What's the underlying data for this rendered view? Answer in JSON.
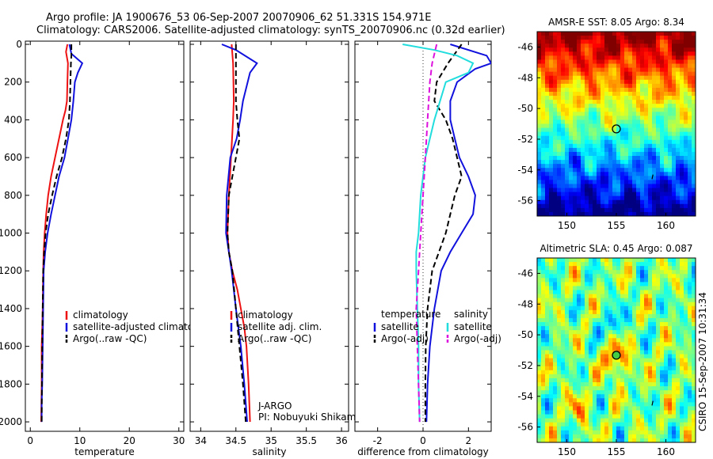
{
  "title_line1": "Argo profile: JA 1900676_53 06-Sep-2007 20070906_62 51.331S 154.971E",
  "title_line2": "Climatology: CARS2006. Satellite-adjusted climatology: synTS_20070906.nc (0.32d earlier)",
  "side_label": "CSIRO 15-Sep-2007 10:31:34",
  "chart_data": [
    {
      "type": "line",
      "xlabel": "temperature",
      "xlim": [
        -1,
        31
      ],
      "ylim": [
        0,
        2050
      ],
      "y_reversed": true,
      "xticks": [
        "0",
        "10",
        "20",
        "30"
      ],
      "yticks": [
        "0",
        "200",
        "400",
        "600",
        "800",
        "1000",
        "1200",
        "1400",
        "1600",
        "1800",
        "2000"
      ],
      "legend": [
        "climatology",
        "satellite-adjusted climatology",
        "Argo(..raw -QC)"
      ],
      "series": [
        {
          "name": "climatology",
          "color": "#ee1111",
          "dash": "",
          "x": [
            7.5,
            7.2,
            7.6,
            7.5,
            7.4,
            7.1,
            6.6,
            5.8,
            5.0,
            4.2,
            3.6,
            3.2,
            2.9,
            2.7,
            2.6,
            2.5,
            2.4,
            2.3,
            2.3,
            2.25,
            2.2
          ],
          "y": [
            0,
            40,
            100,
            200,
            300,
            350,
            400,
            500,
            600,
            700,
            800,
            900,
            1000,
            1100,
            1200,
            1400,
            1500,
            1600,
            1800,
            1900,
            2000
          ]
        },
        {
          "name": "satellite-adjusted climatology",
          "color": "#1111dd",
          "dash": "",
          "x": [
            7.9,
            8.3,
            10.5,
            9.6,
            9.0,
            8.7,
            8.3,
            7.6,
            6.9,
            5.8,
            5.0,
            4.2,
            3.5,
            3.0,
            2.7,
            2.6,
            2.5,
            2.4,
            2.3,
            2.3
          ],
          "y": [
            0,
            50,
            100,
            150,
            200,
            300,
            400,
            500,
            600,
            700,
            800,
            900,
            1000,
            1100,
            1200,
            1400,
            1600,
            1800,
            1900,
            2000
          ]
        },
        {
          "name": "Argo(..raw -QC)",
          "color": "#000000",
          "dash": "7,4",
          "x": [
            8.3,
            8.3,
            8.2,
            8.1,
            8.0,
            7.8,
            7.2,
            6.4,
            5.3,
            4.4,
            3.6,
            3.1,
            2.8,
            2.6,
            2.5,
            2.4,
            2.35,
            2.3
          ],
          "y": [
            0,
            60,
            100,
            200,
            300,
            400,
            500,
            600,
            700,
            800,
            900,
            1000,
            1100,
            1200,
            1400,
            1600,
            1800,
            2000
          ]
        }
      ]
    },
    {
      "type": "line",
      "xlabel": "salinity",
      "xlim": [
        33.85,
        36.1
      ],
      "ylim": [
        0,
        2050
      ],
      "y_reversed": true,
      "xticks": [
        "34",
        "34.5",
        "35",
        "35.5",
        "36"
      ],
      "legend": [
        "climatology",
        "satellite adj. clim.",
        "Argo(..raw -QC)"
      ],
      "annotation": [
        "J-ARGO",
        "PI: Nobuyuki Shikama"
      ],
      "series": [
        {
          "name": "climatology",
          "color": "#ee1111",
          "dash": "",
          "x": [
            34.44,
            34.46,
            34.47,
            34.46,
            34.43,
            34.4,
            34.38,
            34.4,
            34.45,
            34.52,
            34.57,
            34.62,
            34.65,
            34.68,
            34.7
          ],
          "y": [
            0,
            100,
            300,
            400,
            600,
            800,
            1000,
            1100,
            1200,
            1300,
            1400,
            1500,
            1600,
            1800,
            2000
          ]
        },
        {
          "name": "satellite adj. clim.",
          "color": "#1111dd",
          "dash": "",
          "x": [
            34.3,
            34.5,
            34.8,
            34.7,
            34.6,
            34.56,
            34.51,
            34.42,
            34.37,
            34.36,
            34.4,
            34.44,
            34.5,
            34.57,
            34.62,
            34.66
          ],
          "y": [
            0,
            30,
            100,
            150,
            300,
            400,
            500,
            600,
            800,
            1000,
            1100,
            1200,
            1400,
            1600,
            1800,
            2000
          ]
        },
        {
          "name": "Argo(..raw -QC)",
          "color": "#000000",
          "dash": "7,4",
          "x": [
            34.5,
            34.5,
            34.5,
            34.52,
            34.55,
            34.5,
            34.45,
            34.4,
            34.38,
            34.4,
            34.45,
            34.5,
            34.55,
            34.6,
            34.64
          ],
          "y": [
            0,
            100,
            300,
            400,
            500,
            600,
            700,
            800,
            1000,
            1100,
            1200,
            1400,
            1600,
            1800,
            2000
          ]
        }
      ]
    },
    {
      "type": "line",
      "xlabel": "difference from climatology",
      "xlim": [
        -3,
        3
      ],
      "ylim": [
        0,
        2050
      ],
      "y_reversed": true,
      "xticks": [
        "-2",
        "0",
        "2"
      ],
      "legend_groups": [
        {
          "heading": "temperature",
          "items": [
            "satellite",
            "Argo(-adj)"
          ]
        },
        {
          "heading": "salinity",
          "items": [
            "satellite",
            "Argo(-adj)"
          ]
        }
      ],
      "series": [
        {
          "name": "satellite temperature",
          "color": "#1111dd",
          "dash": "",
          "x": [
            1.2,
            2.8,
            3.0,
            2.3,
            1.5,
            1.2,
            1.2,
            1.4,
            1.6,
            2.0,
            2.3,
            2.2,
            1.7,
            1.2,
            0.8,
            0.5,
            0.3,
            0.2,
            0.15
          ],
          "y": [
            0,
            60,
            100,
            130,
            200,
            300,
            400,
            500,
            600,
            700,
            800,
            900,
            1000,
            1100,
            1200,
            1400,
            1600,
            1800,
            2000
          ]
        },
        {
          "name": "Argo(-adj) temperature",
          "color": "#000000",
          "dash": "7,4",
          "x": [
            1.7,
            1.1,
            0.6,
            0.5,
            1.0,
            1.3,
            1.5,
            1.7,
            1.4,
            1.0,
            0.7,
            0.4,
            0.2,
            0.12,
            0.1,
            0.1
          ],
          "y": [
            0,
            100,
            200,
            300,
            400,
            500,
            600,
            700,
            800,
            1000,
            1100,
            1200,
            1400,
            1600,
            1800,
            2000
          ]
        },
        {
          "name": "satellite salinity",
          "color": "#22dddd",
          "dash": "",
          "x": [
            -0.9,
            0.5,
            1.5,
            2.2,
            2.0,
            1.0,
            0.5,
            0.1,
            -0.1,
            -0.2,
            -0.3,
            -0.3,
            -0.25,
            -0.2,
            -0.2,
            -0.15
          ],
          "y": [
            0,
            30,
            60,
            100,
            150,
            200,
            400,
            600,
            800,
            1000,
            1100,
            1200,
            1400,
            1600,
            1800,
            2000
          ]
        },
        {
          "name": "Argo(-adj) salinity",
          "color": "#dd11dd",
          "dash": "7,4",
          "x": [
            0.6,
            0.4,
            0.3,
            0.2,
            0.1,
            0.0,
            -0.1,
            -0.2,
            -0.3,
            -0.25,
            -0.2,
            -0.15
          ],
          "y": [
            0,
            100,
            200,
            400,
            600,
            800,
            1000,
            1200,
            1400,
            1600,
            1800,
            2000
          ]
        }
      ]
    },
    {
      "type": "heatmap",
      "title": "AMSR-E SST: 8.05 Argo: 8.34",
      "xlim": [
        147,
        163
      ],
      "ylim": [
        -57,
        -45
      ],
      "xticks": [
        "150",
        "155",
        "160"
      ],
      "yticks": [
        "-46",
        "-48",
        "-50",
        "-52",
        "-54",
        "-56"
      ],
      "marker": {
        "lon": 155.0,
        "lat": -51.33,
        "fill": "none"
      }
    },
    {
      "type": "heatmap",
      "title": "Altimetric SLA: 0.45 Argo: 0.087",
      "xlim": [
        147,
        163
      ],
      "ylim": [
        -57,
        -45
      ],
      "xticks": [
        "150",
        "155",
        "160"
      ],
      "yticks": [
        "-46",
        "-48",
        "-50",
        "-52",
        "-54",
        "-56"
      ],
      "marker": {
        "lon": 155.0,
        "lat": -51.33,
        "fill": "#44cc44"
      }
    }
  ]
}
